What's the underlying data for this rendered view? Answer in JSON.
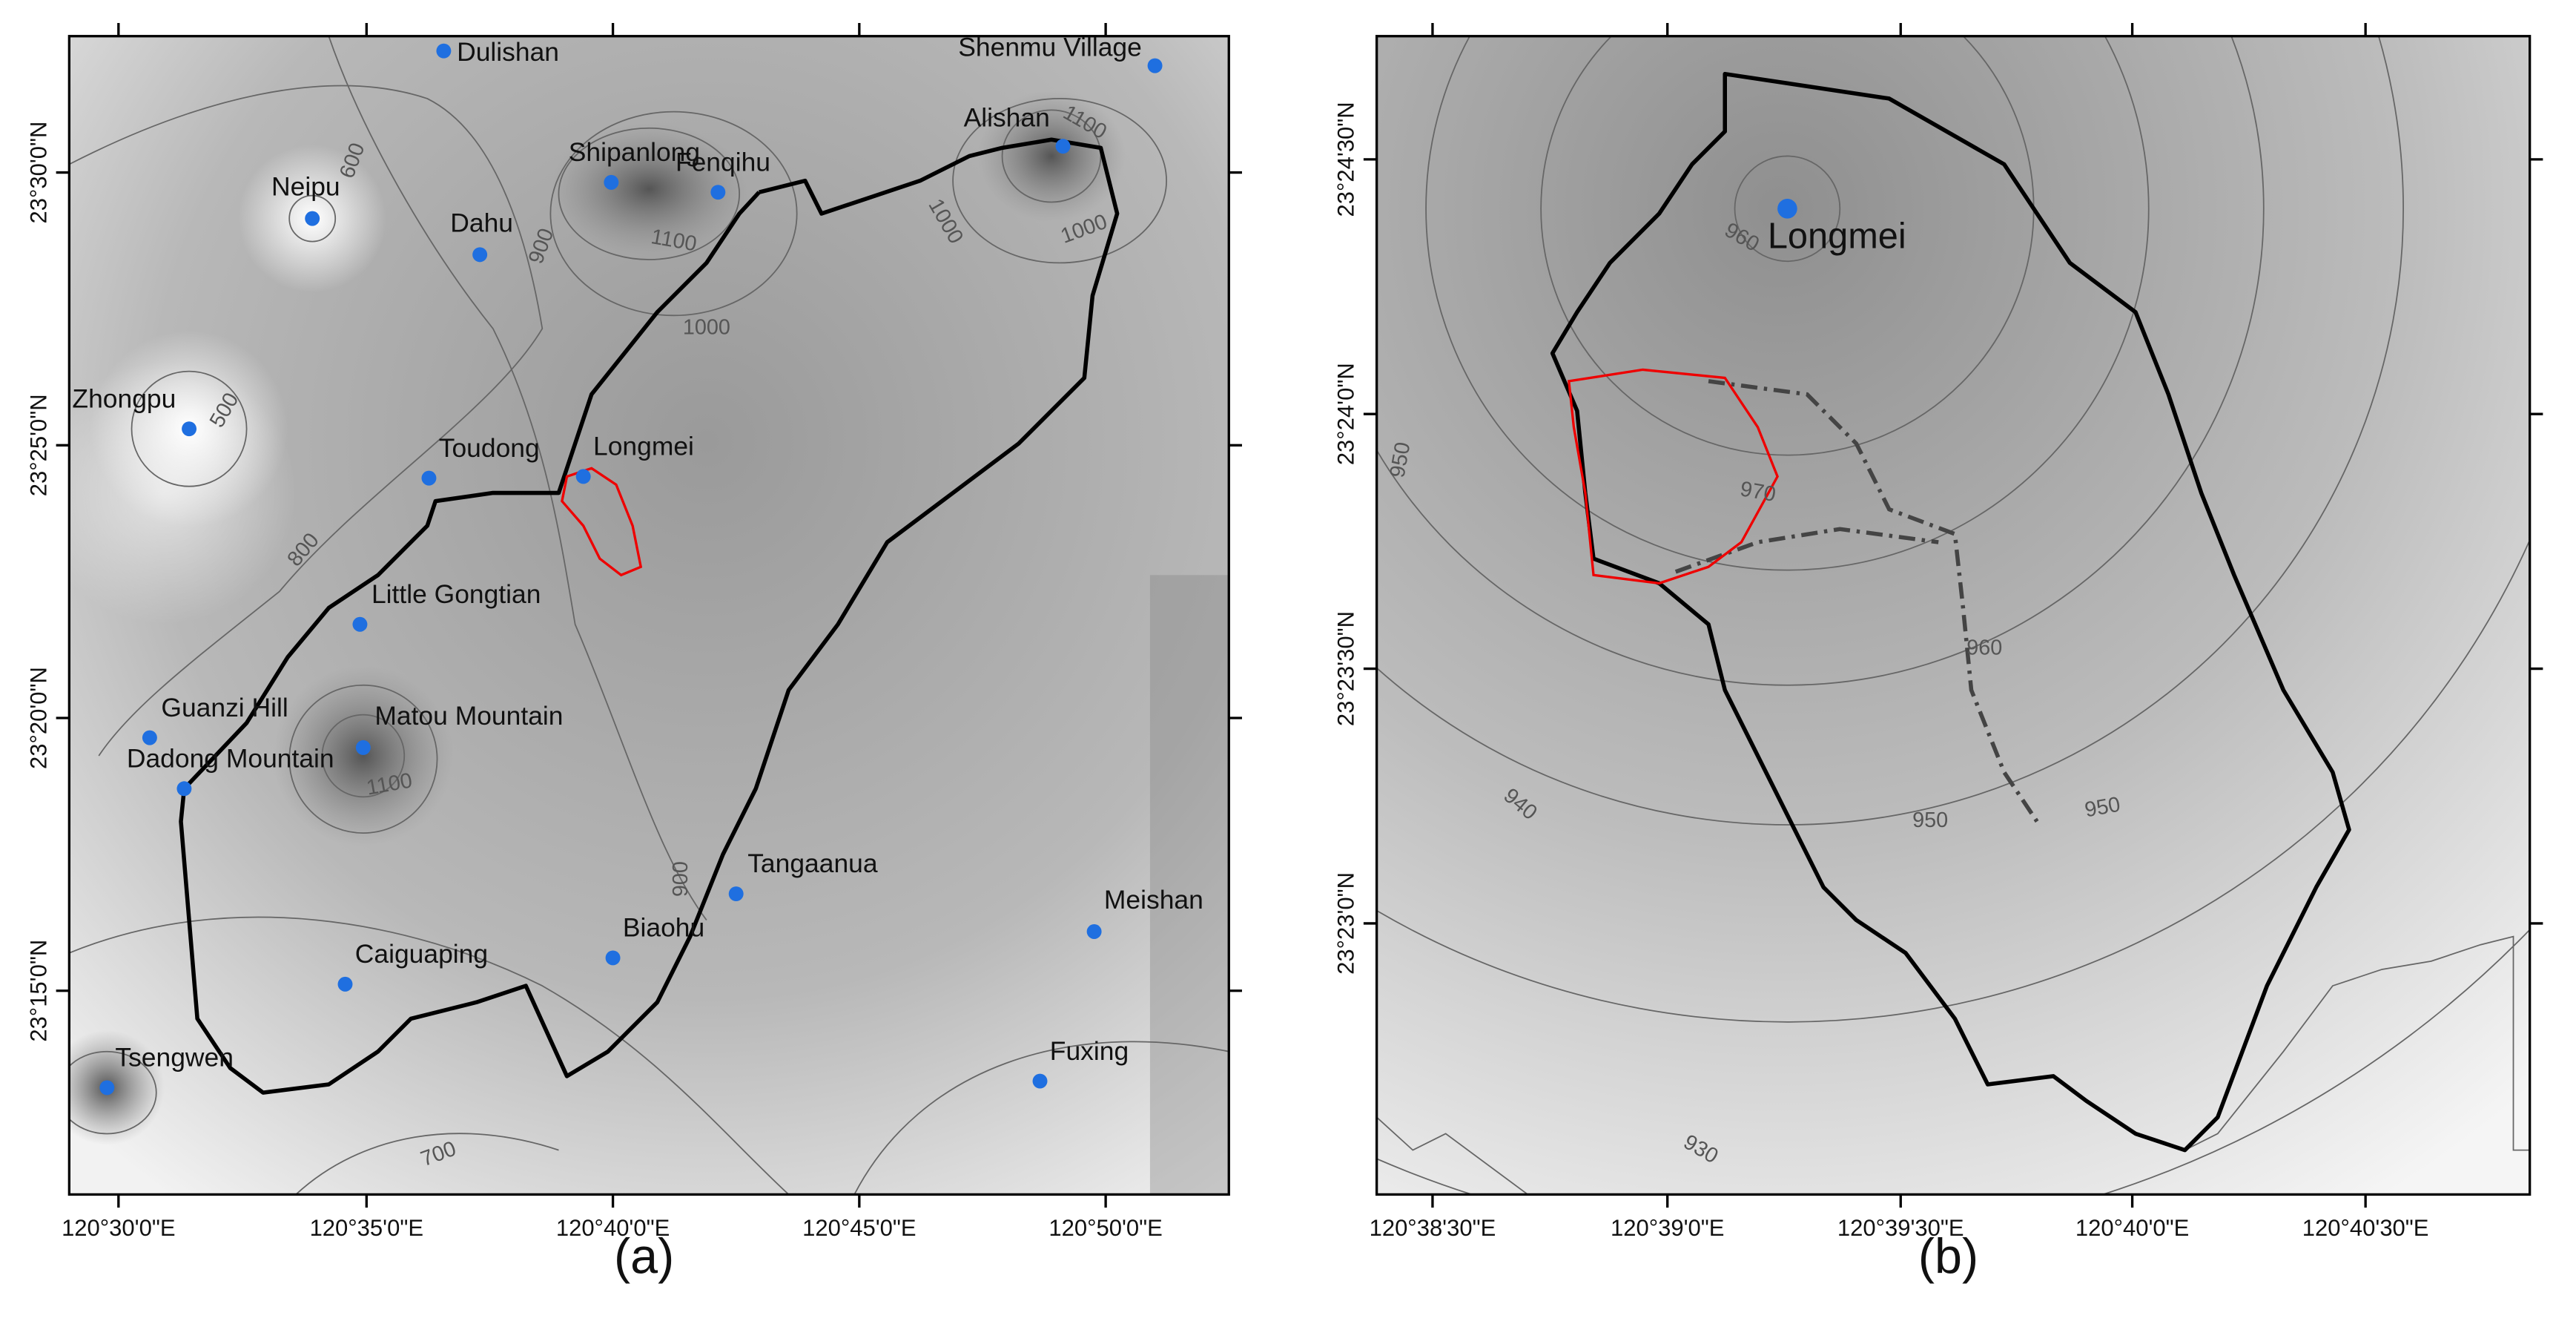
{
  "panels": [
    {
      "label": "(a)",
      "stations": [
        "Dulishan",
        "Shenmu Village",
        "Alishan",
        "Neipu",
        "Shipanlong",
        "Fenqihu",
        "Dahu",
        "Zhongpu",
        "Toudong",
        "Longmei",
        "Little Gongtian",
        "Guanzi Hill",
        "Matou Mountain",
        "Dadong Mountain",
        "Tangaanua",
        "Biaohu",
        "Meishan",
        "Caiguaping",
        "Fuxing",
        "Tsengwen"
      ],
      "contour_labels": [
        600,
        900,
        1100,
        1000,
        1100,
        1000,
        1000,
        500,
        800,
        1100,
        900,
        700
      ],
      "x_ticks": [
        "120°30'0\"E",
        "120°35'0\"E",
        "120°40'0\"E",
        "120°45'0\"E",
        "120°50'0\"E"
      ],
      "y_ticks": [
        "23°30'0\"N",
        "23°25'0\"N",
        "23°20'0\"N",
        "23°15'0\"N"
      ]
    },
    {
      "label": "(b)",
      "stations": [
        "Longmei"
      ],
      "contour_labels": [
        960,
        950,
        970,
        960,
        940,
        950,
        950,
        930
      ],
      "x_ticks": [
        "120°38'30\"E",
        "120°39'0\"E",
        "120°39'30\"E",
        "120°40'0\"E",
        "120°40'30\"E"
      ],
      "y_ticks": [
        "23°24'30\"N",
        "23°24'0\"N",
        "23°23'30\"N",
        "23°23'0\"N"
      ]
    }
  ]
}
